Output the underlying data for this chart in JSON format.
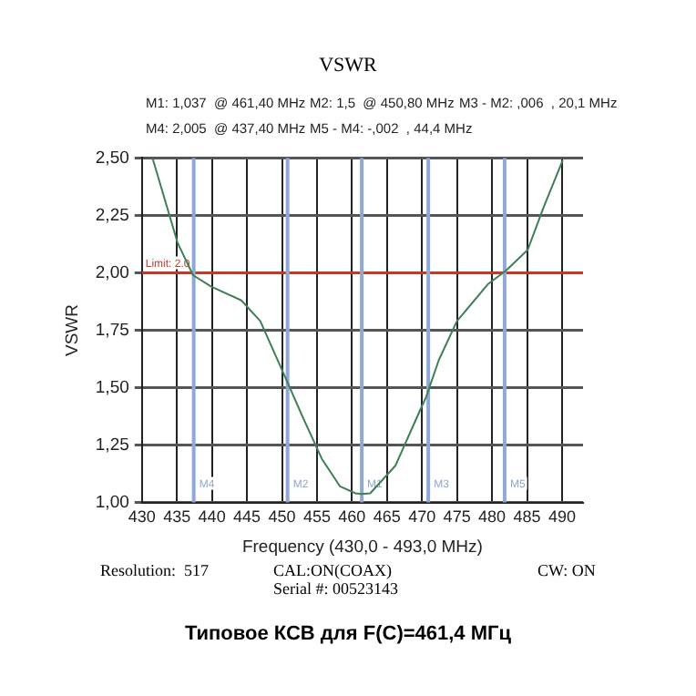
{
  "chart_data": {
    "type": "line",
    "title": "VSWR",
    "xlabel": "Frequency (430,0 - 493,0 MHz)",
    "ylabel": "VSWR",
    "annotations": [
      "M1: 1,037  @ 461,40 MHz",
      "M2: 1,5  @ 450,80 MHz",
      "M3 - M2: ,006  , 20,1 MHz",
      "M4: 2,005  @ 437,40 MHz",
      "M5 - M4: -,002  , 44,4 MHz",
      "Resolution:  517",
      "CAL:ON(COAX)",
      "CW: ON",
      "Serial #: 00523143",
      "Типовое КСВ для F(C)=461,4 МГц"
    ],
    "series": [
      {
        "color": "#3f7f55",
        "x": [
          431.5,
          432.0,
          435.1,
          437.3,
          439.9,
          444.2,
          446.9,
          450.4,
          453.0,
          455.7,
          458.3,
          460.5,
          461.4,
          462.6,
          466.2,
          469.7,
          470.6,
          472.4,
          475.0,
          479.4,
          482.0,
          485.1,
          487.3,
          490.1
        ],
        "values": [
          2.5,
          2.45,
          2.13,
          1.99,
          1.94,
          1.88,
          1.79,
          1.55,
          1.37,
          1.19,
          1.07,
          1.04,
          1.037,
          1.04,
          1.16,
          1.4,
          1.46,
          1.62,
          1.79,
          1.95,
          2.01,
          2.1,
          2.28,
          2.49
        ]
      }
    ],
    "xlim": [
      430,
      493
    ],
    "xticks": [
      430,
      435,
      440,
      445,
      450,
      455,
      460,
      465,
      470,
      475,
      480,
      485,
      490
    ],
    "ylim": [
      1,
      2.5
    ],
    "yticks": [
      {
        "value": 1,
        "label": "1,00"
      },
      {
        "value": 1.25,
        "label": "1,25"
      },
      {
        "value": 1.5,
        "label": "1,50"
      },
      {
        "value": 1.75,
        "label": "1,75"
      },
      {
        "value": 2,
        "label": "2,00"
      },
      {
        "value": 2.25,
        "label": "2,25"
      },
      {
        "value": 2.5,
        "label": "2,50"
      }
    ],
    "grid": true,
    "legend": false,
    "marker": "none",
    "line_style": "solid",
    "ref_lines": [
      {
        "axis": "y",
        "value": 2,
        "label": "Limit: 2.0",
        "color": "#c0392b"
      },
      {
        "axis": "x",
        "value": 437.4,
        "label": "M4",
        "color": "#8fa8d4"
      },
      {
        "axis": "x",
        "value": 450.8,
        "label": "M2",
        "color": "#8fa8d4"
      },
      {
        "axis": "x",
        "value": 461.4,
        "label": "M1",
        "color": "#8fa8d4"
      },
      {
        "axis": "x",
        "value": 470.9,
        "label": "M3",
        "color": "#8fa8d4"
      },
      {
        "axis": "x",
        "value": 481.8,
        "label": "M5",
        "color": "#8fa8d4"
      }
    ]
  }
}
